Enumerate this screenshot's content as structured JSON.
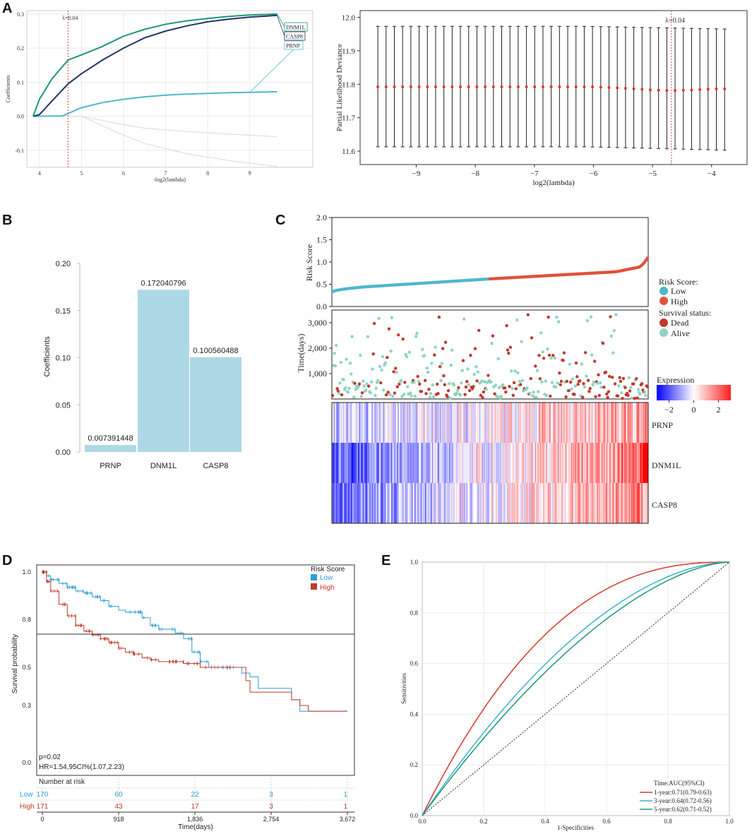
{
  "figure": {
    "panel_labels": [
      "A",
      "B",
      "C",
      "D",
      "E"
    ]
  },
  "colors": {
    "teal": "#4FB7CC",
    "dark_navy": "#233468",
    "green": "#1E9778",
    "red": "#D43A2A",
    "bar": "#ADD8E6",
    "dead": "#C0392B",
    "alive": "#8FD3C2",
    "low": "#4FB7CC",
    "high": "#E2513C"
  },
  "chart_data": [
    {
      "id": "A1",
      "type": "line",
      "title": "",
      "xlabel": "-log2(lambda)",
      "ylabel": "Coefficients",
      "xlim": [
        3.7,
        10.5
      ],
      "ylim": [
        -0.15,
        0.31
      ],
      "xticks": [
        "4",
        "5",
        "6",
        "7",
        "8",
        "9"
      ],
      "yticks": [
        "-0.1",
        "0.0",
        "0.1",
        "0.2",
        "0.3"
      ],
      "annotation": "λ=0.04",
      "vline_x": 4.68,
      "series": [
        {
          "name": "DNM1L",
          "color": "#1E9778",
          "x": [
            3.85,
            4.0,
            4.3,
            4.68,
            5.0,
            5.5,
            6.0,
            6.5,
            7.0,
            7.5,
            8.0,
            8.5,
            9.0,
            9.65
          ],
          "y": [
            0.0,
            0.05,
            0.11,
            0.165,
            0.18,
            0.205,
            0.235,
            0.255,
            0.27,
            0.28,
            0.287,
            0.293,
            0.297,
            0.3
          ]
        },
        {
          "name": "CASP8",
          "color": "#233468",
          "x": [
            3.85,
            4.0,
            4.3,
            4.68,
            5.0,
            5.5,
            6.0,
            6.5,
            7.0,
            7.5,
            8.0,
            8.5,
            9.0,
            9.65
          ],
          "y": [
            0.0,
            0.005,
            0.045,
            0.095,
            0.125,
            0.165,
            0.2,
            0.23,
            0.25,
            0.265,
            0.277,
            0.285,
            0.291,
            0.296
          ]
        },
        {
          "name": "PRNP",
          "color": "#4FB7CC",
          "x": [
            3.85,
            4.55,
            5.0,
            5.5,
            6.0,
            6.5,
            7.0,
            7.5,
            8.0,
            8.5,
            9.0,
            9.65
          ],
          "y": [
            0.0,
            0.001,
            0.025,
            0.04,
            0.05,
            0.057,
            0.062,
            0.065,
            0.067,
            0.069,
            0.07,
            0.072
          ]
        },
        {
          "name": "",
          "color": "#D9D9D9",
          "x": [
            3.85,
            5.0,
            5.8,
            6.5,
            7.5,
            8.5,
            9.65
          ],
          "y": [
            0.0,
            0.0,
            -0.02,
            -0.035,
            -0.045,
            -0.052,
            -0.06
          ]
        },
        {
          "name": "",
          "color": "#D9D9D9",
          "x": [
            3.85,
            5.0,
            5.8,
            6.5,
            7.5,
            8.5,
            9.65
          ],
          "y": [
            0.0,
            0.0,
            -0.045,
            -0.08,
            -0.11,
            -0.13,
            -0.148
          ]
        }
      ],
      "legend_labels": [
        "DNM1L",
        "CASP8",
        "PRNP"
      ]
    },
    {
      "id": "A2",
      "type": "errorbar",
      "xlabel": "log2(lambda)",
      "ylabel": "Partial Likelihood Deviance",
      "xlim": [
        -9.95,
        -3.4
      ],
      "ylim": [
        11.56,
        12.02
      ],
      "xticks": [
        "−9",
        "−8",
        "−7",
        "−6",
        "−5",
        "−4"
      ],
      "yticks": [
        "11.6",
        "11.7",
        "11.8",
        "11.9",
        "12.0"
      ],
      "annotation": "λ=0.04",
      "vline_x": -4.68,
      "x_start": -9.65,
      "x_end": -3.78,
      "n_points": 43,
      "y_mean": [
        11.792,
        11.792,
        11.792,
        11.792,
        11.792,
        11.792,
        11.792,
        11.792,
        11.792,
        11.792,
        11.792,
        11.792,
        11.792,
        11.792,
        11.792,
        11.792,
        11.792,
        11.792,
        11.792,
        11.792,
        11.792,
        11.792,
        11.792,
        11.792,
        11.792,
        11.792,
        11.792,
        11.791,
        11.79,
        11.789,
        11.788,
        11.786,
        11.785,
        11.783,
        11.782,
        11.781,
        11.781,
        11.782,
        11.783,
        11.784,
        11.785,
        11.786,
        11.786
      ],
      "y_low": 11.613,
      "y_low_end": 11.603,
      "y_high": 11.973,
      "y_high_end": 11.965
    },
    {
      "id": "B",
      "type": "bar",
      "categories": [
        "PRNP",
        "DNM1L",
        "CASP8"
      ],
      "values": [
        0.007391448,
        0.172040796,
        0.100560488
      ],
      "value_labels": [
        "0.007391448",
        "0.172040796",
        "0.100560488"
      ],
      "ylabel": "Coefficients",
      "ylim": [
        0,
        0.2
      ],
      "yticks": [
        "0.00",
        "0.05",
        "0.10",
        "0.15",
        "0.20"
      ]
    },
    {
      "id": "C_risk",
      "type": "scatter",
      "ylabel": "Risk Score",
      "ylim": [
        0,
        2.0
      ],
      "yticks": [
        "0.0",
        "0.5",
        "1.0",
        "1.5",
        "2.0"
      ],
      "n_samples": 341,
      "n_low": 170,
      "legend_title": "Risk Score:",
      "legend": [
        "Low",
        "High"
      ],
      "curve": {
        "start": 0.33,
        "p10": 0.44,
        "p50": 0.62,
        "p90": 0.78,
        "p97": 0.88,
        "end": 1.09
      }
    },
    {
      "id": "C_time",
      "type": "scatter",
      "ylabel": "Time(days)",
      "ylim": [
        0,
        3500
      ],
      "yticks": [
        "1,000",
        "2,000",
        "3,000"
      ],
      "legend_title": "Survival status:",
      "legend": [
        "Dead",
        "Alive"
      ]
    },
    {
      "id": "C_heatmap",
      "type": "heatmap",
      "rows": [
        "PRNP",
        "DNM1L",
        "CASP8"
      ],
      "colorbar_title": "Expression",
      "colorbar_ticks": [
        "−2",
        "0",
        "2"
      ],
      "range": [
        -3,
        3
      ]
    },
    {
      "id": "D",
      "type": "line",
      "title": "",
      "xlabel": "Time(days)",
      "ylabel": "Survival probability",
      "xlim": [
        0,
        3672
      ],
      "ylim": [
        0,
        1
      ],
      "xticks": [
        "0",
        "918",
        "1,836",
        "2,754",
        "3,672"
      ],
      "yticks": [
        "0.0",
        "0.3",
        "0.5",
        "0.8",
        "1.0"
      ],
      "legend_title": "Risk Score",
      "series": [
        {
          "name": "Low",
          "color": "#2F9CD3",
          "x": [
            0,
            50,
            100,
            200,
            300,
            400,
            500,
            600,
            700,
            800,
            918,
            1000,
            1100,
            1200,
            1300,
            1400,
            1500,
            1600,
            1700,
            1800,
            1900,
            2000,
            2100,
            2200,
            2300,
            2400,
            2450,
            2500,
            2600,
            2700,
            2800,
            3000,
            3100,
            3200,
            3400,
            3672
          ],
          "y": [
            1.0,
            0.98,
            0.96,
            0.94,
            0.92,
            0.9,
            0.89,
            0.87,
            0.85,
            0.82,
            0.8,
            0.79,
            0.79,
            0.76,
            0.72,
            0.7,
            0.7,
            0.68,
            0.65,
            0.58,
            0.53,
            0.5,
            0.5,
            0.5,
            0.5,
            0.47,
            0.47,
            0.45,
            0.39,
            0.39,
            0.39,
            0.33,
            0.27,
            0.27,
            0.27,
            0.27
          ]
        },
        {
          "name": "High",
          "color": "#C0392B",
          "x": [
            0,
            50,
            100,
            200,
            300,
            400,
            500,
            600,
            700,
            800,
            918,
            1000,
            1100,
            1200,
            1300,
            1400,
            1500,
            1600,
            1700,
            1800,
            1900,
            2000,
            2100,
            2200,
            2300,
            2400,
            2450,
            2500,
            2600,
            2700,
            2800,
            3000,
            3100,
            3200,
            3400,
            3672
          ],
          "y": [
            1.0,
            0.95,
            0.9,
            0.83,
            0.77,
            0.72,
            0.69,
            0.67,
            0.65,
            0.63,
            0.6,
            0.58,
            0.57,
            0.55,
            0.54,
            0.53,
            0.53,
            0.53,
            0.52,
            0.52,
            0.5,
            0.5,
            0.5,
            0.5,
            0.5,
            0.5,
            0.43,
            0.37,
            0.37,
            0.37,
            0.37,
            0.33,
            0.3,
            0.27,
            0.27,
            0.27
          ]
        }
      ],
      "legend": [
        "Low",
        "High"
      ],
      "stats_p": "p=0.02",
      "stats_hr": "HR=1.54,95CI%(1.07,2.23)",
      "risk_table_title": "Number at risk",
      "risk_table": [
        {
          "group": "Low",
          "counts": [
            "170",
            "60",
            "22",
            "3",
            "1"
          ]
        },
        {
          "group": "High",
          "counts": [
            "171",
            "43",
            "17",
            "3",
            "1"
          ]
        }
      ]
    },
    {
      "id": "E",
      "type": "line",
      "xlabel": "1-Specificities",
      "ylabel": "Sensitivities",
      "xlim": [
        0,
        1
      ],
      "ylim": [
        0,
        1
      ],
      "xticks": [
        "0.0",
        "0.2",
        "0.4",
        "0.6",
        "0.8",
        "1.0"
      ],
      "yticks": [
        "0.0",
        "0.2",
        "0.4",
        "0.6",
        "0.8",
        "1.0"
      ],
      "legend_title": "Time:AUC(95%CI)",
      "series": [
        {
          "name": "1-year:0.71(0.79-0.63)",
          "color": "#D43A2A",
          "auc": 0.71
        },
        {
          "name": "3-year:0.64(0.72-0.56)",
          "color": "#3AB3C9",
          "auc": 0.64
        },
        {
          "name": "5-year:0.62(0.71-0.52)",
          "color": "#1E9778",
          "auc": 0.62
        }
      ]
    }
  ]
}
